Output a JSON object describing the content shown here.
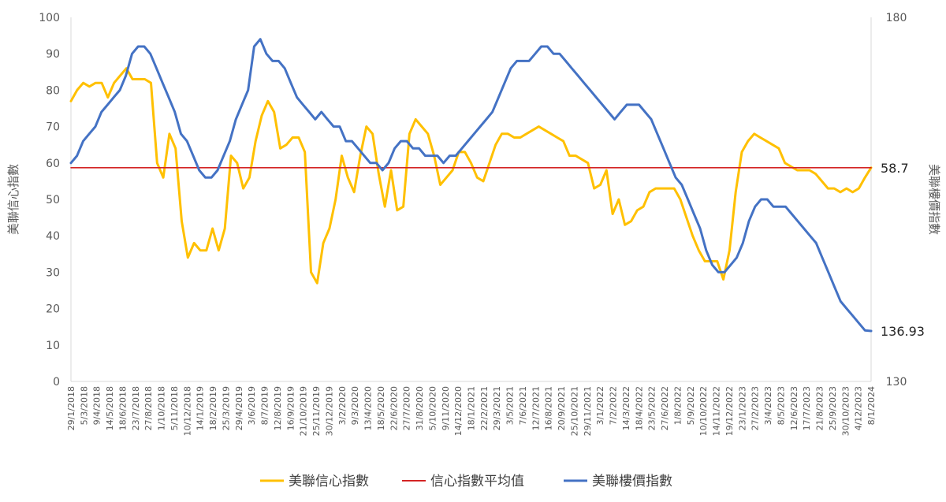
{
  "chart_data": {
    "type": "line",
    "title": "",
    "y_left": {
      "label": "美聯信心指數",
      "min": 0,
      "max": 100,
      "ticks": [
        0,
        10,
        20,
        30,
        40,
        50,
        60,
        70,
        80,
        90,
        100
      ]
    },
    "y_right": {
      "label": "美聯樓價指數",
      "min": 130,
      "max": 180,
      "ticks": [
        130,
        155,
        180
      ],
      "tick_labels": [
        "130",
        "",
        "180"
      ]
    },
    "x_tick_labels": [
      "29/1/2018",
      "5/3/2018",
      "9/4/2018",
      "14/5/2018",
      "18/6/2018",
      "23/7/2018",
      "27/8/2018",
      "1/10/2018",
      "5/11/2018",
      "10/12/2018",
      "14/1/2019",
      "18/2/2019",
      "25/3/2019",
      "29/4/2019",
      "3/6/2019",
      "8/7/2019",
      "12/8/2019",
      "16/9/2019",
      "21/10/2019",
      "25/11/2019",
      "30/12/2019",
      "3/2/2020",
      "9/3/2020",
      "13/4/2020",
      "18/5/2020",
      "22/6/2020",
      "27/7/2020",
      "31/8/2020",
      "5/10/2020",
      "9/11/2020",
      "14/12/2020",
      "18/1/2021",
      "22/2/2021",
      "29/3/2021",
      "3/5/2021",
      "7/6/2021",
      "12/7/2021",
      "16/8/2021",
      "20/9/2021",
      "25/10/2021",
      "29/11/2021",
      "3/1/2022",
      "7/2/2022",
      "14/3/2022",
      "18/4/2022",
      "23/5/2022",
      "27/6/2022",
      "1/8/2022",
      "5/9/2022",
      "10/10/2022",
      "14/11/2022",
      "19/12/2022",
      "23/1/2023",
      "27/2/2023",
      "3/4/2023",
      "8/5/2023",
      "12/6/2023",
      "17/7/2023",
      "21/8/2023",
      "25/9/2023",
      "30/10/2023",
      "4/12/2023",
      "8/1/2024"
    ],
    "series": [
      {
        "name": "美聯信心指數",
        "axis": "left",
        "color": "#FFC000",
        "values": [
          77,
          80,
          82,
          81,
          82,
          82,
          78,
          82,
          84,
          86,
          83,
          83,
          83,
          82,
          60,
          56,
          68,
          64,
          44,
          34,
          38,
          36,
          36,
          42,
          36,
          42,
          62,
          60,
          53,
          56,
          66,
          73,
          77,
          74,
          64,
          65,
          67,
          67,
          63,
          30,
          27,
          38,
          42,
          50,
          62,
          56,
          52,
          62,
          70,
          68,
          57,
          48,
          58,
          47,
          48,
          68,
          72,
          70,
          68,
          62,
          54,
          56,
          58,
          63,
          63,
          60,
          56,
          55,
          60,
          65,
          68,
          68,
          67,
          67,
          68,
          69,
          70,
          69,
          68,
          67,
          66,
          62,
          62,
          61,
          60,
          53,
          54,
          58,
          46,
          50,
          43,
          44,
          47,
          48,
          52,
          53,
          53,
          53,
          53,
          50,
          45,
          40,
          36,
          33,
          33,
          33,
          28,
          36,
          52,
          63,
          66,
          68,
          67,
          66,
          65,
          64,
          60,
          59,
          58,
          58,
          58,
          57,
          55,
          53,
          53,
          52,
          53,
          52,
          53,
          56,
          58.7
        ],
        "end_label": ""
      },
      {
        "name": "信心指數平均值",
        "axis": "left",
        "color": "#D42424",
        "values": [
          58.7,
          58.7
        ],
        "end_label": "58.7"
      },
      {
        "name": "美聯樓價指數",
        "axis": "right",
        "color": "#4472C4",
        "values": [
          160,
          161,
          163,
          164,
          165,
          167,
          168,
          169,
          170,
          172,
          175,
          176,
          176,
          175,
          173,
          171,
          169,
          167,
          164,
          163,
          161,
          159,
          158,
          158,
          159,
          161,
          163,
          166,
          168,
          170,
          176,
          177,
          175,
          174,
          174,
          173,
          171,
          169,
          168,
          167,
          166,
          167,
          166,
          165,
          165,
          163,
          163,
          162,
          161,
          160,
          160,
          159,
          160,
          162,
          163,
          163,
          162,
          162,
          161,
          161,
          161,
          160,
          161,
          161,
          162,
          163,
          164,
          165,
          166,
          167,
          169,
          171,
          173,
          174,
          174,
          174,
          175,
          176,
          176,
          175,
          175,
          174,
          173,
          172,
          171,
          170,
          169,
          168,
          167,
          166,
          167,
          168,
          168,
          168,
          167,
          166,
          164,
          162,
          160,
          158,
          157,
          155,
          153,
          151,
          148,
          146,
          145,
          145,
          146,
          147,
          149,
          152,
          154,
          155,
          155,
          154,
          154,
          154,
          153,
          152,
          151,
          150,
          149,
          147,
          145,
          143,
          141,
          140,
          139,
          138,
          137,
          136.93
        ],
        "end_label": "136.93"
      }
    ],
    "legend": {
      "placement": "bottom",
      "items": [
        "美聯信心指數",
        "信心指數平均值",
        "美聯樓價指數"
      ]
    },
    "grid": false
  }
}
